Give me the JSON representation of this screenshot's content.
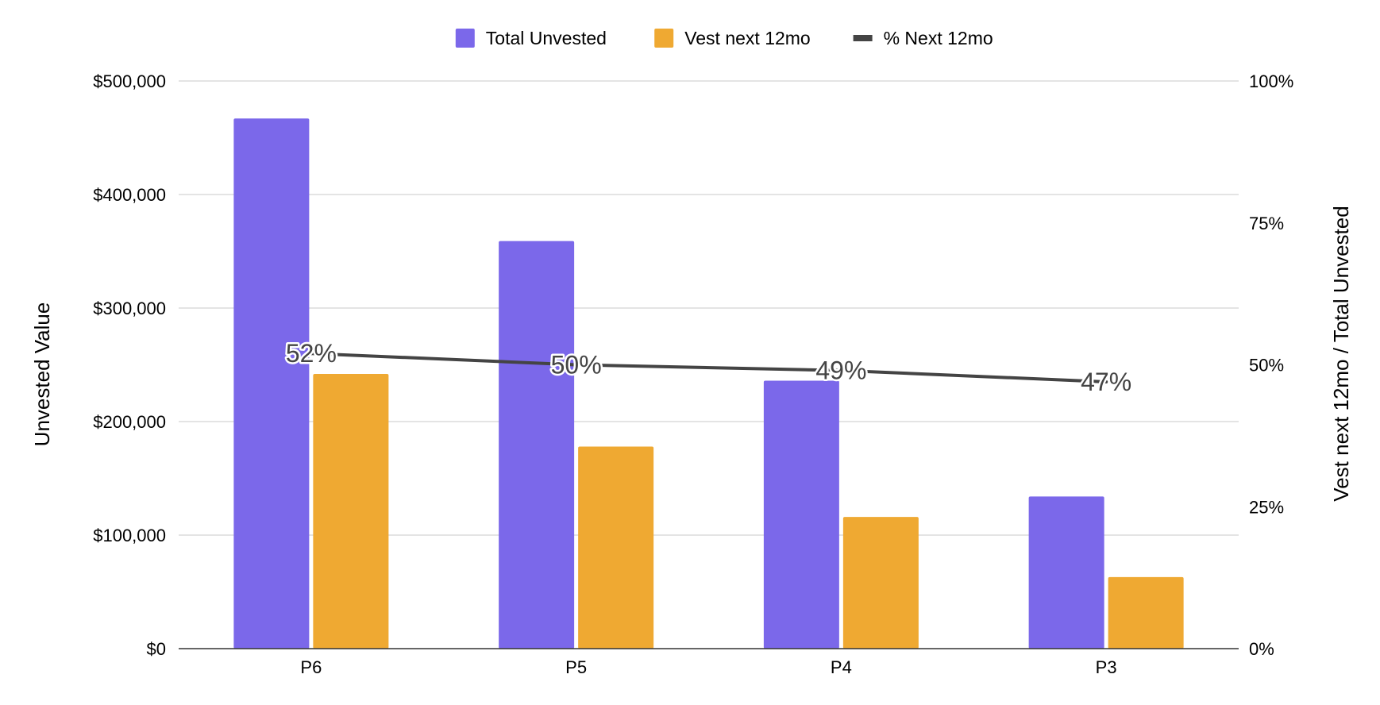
{
  "chart_data": {
    "type": "bar",
    "categories": [
      "P6",
      "P5",
      "P4",
      "P3"
    ],
    "series": [
      {
        "name": "Total Unvested",
        "type": "bar",
        "axis": "left",
        "color": "#7b68ea",
        "values": [
          467000,
          359000,
          236000,
          134000
        ]
      },
      {
        "name": "Vest next 12mo",
        "type": "bar",
        "axis": "left",
        "color": "#efa932",
        "values": [
          242000,
          178000,
          116000,
          63000
        ]
      },
      {
        "name": "% Next 12mo",
        "type": "line",
        "axis": "right",
        "color": "#444444",
        "values": [
          52,
          50,
          49,
          47
        ],
        "labels": [
          "52%",
          "50%",
          "49%",
          "47%"
        ]
      }
    ],
    "title": "",
    "xlabel": "",
    "ylabel": "Unvested Value",
    "y2label": "Vest next 12mo / Total Unvested",
    "ylim": [
      0,
      500000
    ],
    "y2lim": [
      0,
      100
    ],
    "yticks": [
      "$0",
      "$100,000",
      "$200,000",
      "$300,000",
      "$400,000",
      "$500,000"
    ],
    "y2ticks": [
      "0%",
      "25%",
      "50%",
      "75%",
      "100%"
    ],
    "grid": true,
    "legend": "top"
  }
}
